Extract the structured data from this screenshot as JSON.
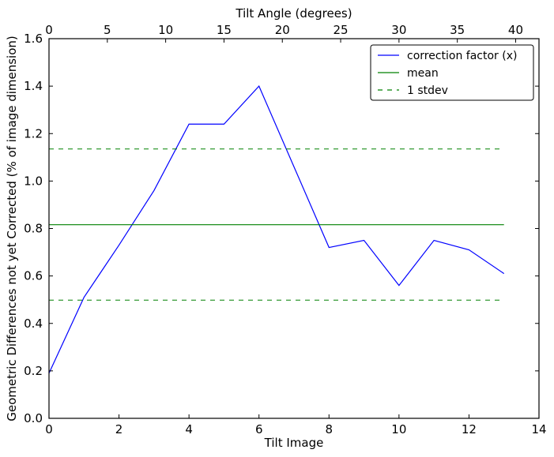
{
  "chart_data": {
    "type": "line",
    "xlabel": "Tilt Image",
    "ylabel": "Geometric Differences not yet Corrected (% of image dimension)",
    "top_xlabel": "Tilt Angle (degrees)",
    "xlim": [
      0,
      14
    ],
    "ylim": [
      0,
      1.6
    ],
    "top_xlim": [
      0,
      42
    ],
    "x_ticks": [
      "0",
      "2",
      "4",
      "6",
      "8",
      "10",
      "12",
      "14"
    ],
    "y_ticks": [
      "0.0",
      "0.2",
      "0.4",
      "0.6",
      "0.8",
      "1.0",
      "1.2",
      "1.4",
      "1.6"
    ],
    "top_x_ticks": [
      "0",
      "5",
      "10",
      "15",
      "20",
      "25",
      "30",
      "35",
      "40"
    ],
    "grid": false,
    "legend_position": "top-right",
    "series": [
      {
        "name": "correction factor (x)",
        "color": "#0000ff",
        "style": "solid",
        "x": [
          0,
          1,
          2,
          3,
          4,
          5,
          6,
          7,
          8,
          9,
          10,
          11,
          12,
          13
        ],
        "values": [
          0.19,
          0.51,
          0.73,
          0.96,
          1.24,
          1.24,
          1.4,
          1.06,
          0.72,
          0.75,
          0.56,
          0.75,
          0.71,
          0.61
        ]
      },
      {
        "name": "mean",
        "color": "#008000",
        "style": "solid",
        "x": [
          0,
          13
        ],
        "values": [
          0.816,
          0.816
        ]
      },
      {
        "name": "1 stdev",
        "color": "#008000",
        "style": "dashed",
        "x": [
          0,
          13
        ],
        "values": [
          1.135,
          1.135
        ]
      },
      {
        "name": "",
        "color": "#008000",
        "style": "dashed",
        "x": [
          0,
          13
        ],
        "values": [
          0.498,
          0.498
        ]
      }
    ],
    "legend": [
      "correction factor (x)",
      "mean",
      "1 stdev"
    ]
  }
}
